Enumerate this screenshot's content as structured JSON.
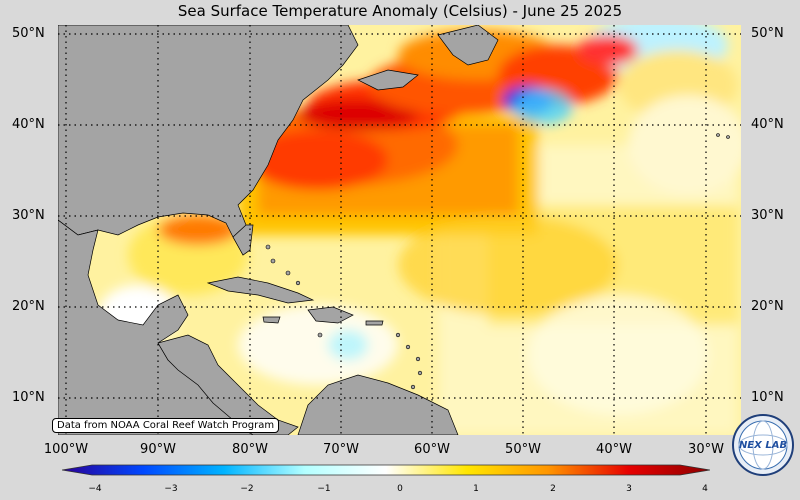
{
  "title": "Sea Surface Temperature Anomaly (Celsius) - June 25 2025",
  "attribution": "Data from NOAA Coral Reef Watch Program",
  "lat_labels": [
    "50°N",
    "40°N",
    "30°N",
    "20°N",
    "10°N"
  ],
  "lon_labels": [
    "100°W",
    "90°W",
    "80°W",
    "70°W",
    "60°W",
    "50°W",
    "40°W",
    "30°W"
  ],
  "colorbar": {
    "ticks": [
      "−4",
      "−3",
      "−2",
      "−1",
      "0",
      "1",
      "2",
      "3",
      "4"
    ],
    "range": [
      -4,
      4
    ],
    "colors": [
      "#2a0096",
      "#0048ff",
      "#00b4ff",
      "#b4ffff",
      "#ffffff",
      "#ffe600",
      "#ff9600",
      "#e60000",
      "#8c0000"
    ]
  },
  "colors": {
    "land": "#a4a4a4",
    "background": "#d9d9d9"
  },
  "logo": {
    "text": "NEX LAB",
    "icon": "globe-logo-icon"
  }
}
